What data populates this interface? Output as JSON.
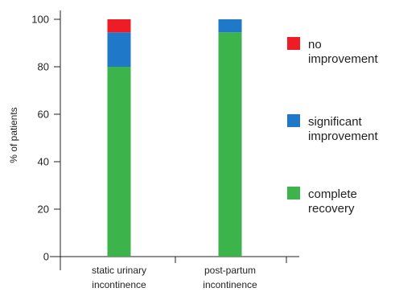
{
  "chart_data": {
    "type": "bar",
    "stacked": true,
    "categories": [
      "static urinary incontinence",
      "post-partum incontinence"
    ],
    "category_label_lines": [
      [
        "static urinary",
        "incontinence"
      ],
      [
        "post-partum",
        "incontinence"
      ]
    ],
    "series": [
      {
        "name": "complete recovery",
        "color": "#3cb44b",
        "values": [
          80,
          94.5
        ]
      },
      {
        "name": "significant improvement",
        "color": "#1f78c8",
        "values": [
          14.5,
          5.5
        ]
      },
      {
        "name": "no improvement",
        "color": "#ee1c25",
        "values": [
          5.5,
          0
        ]
      }
    ],
    "ylabel": "% of patients",
    "ylim": [
      0,
      100
    ],
    "yticks": [
      0,
      20,
      40,
      60,
      80,
      100
    ],
    "legend_position": "right",
    "legend": [
      {
        "lines": [
          "no",
          "improvement"
        ],
        "color": "#ee1c25"
      },
      {
        "lines": [
          "significant",
          "improvement"
        ],
        "color": "#1f78c8"
      },
      {
        "lines": [
          "complete",
          "recovery"
        ],
        "color": "#3cb44b"
      }
    ]
  }
}
